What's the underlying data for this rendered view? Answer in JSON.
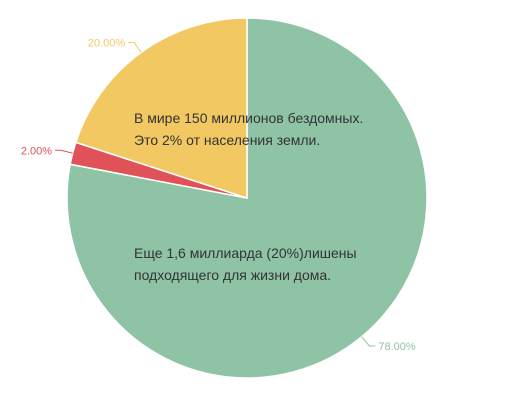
{
  "chart_data": {
    "type": "pie",
    "slices": [
      {
        "label": "78.00%",
        "value": 78,
        "color": "#8fc3a6"
      },
      {
        "label": "2.00%",
        "value": 2,
        "color": "#e05258"
      },
      {
        "label": "20.00%",
        "value": 20,
        "color": "#f2c862"
      }
    ],
    "annotations": [
      "В мире 150 миллионов бездомных.",
      " Это 2% от населения земли.",
      "Еще 1,6 миллиарда (20%)лишены",
      "подходящего для жизни дома."
    ]
  }
}
